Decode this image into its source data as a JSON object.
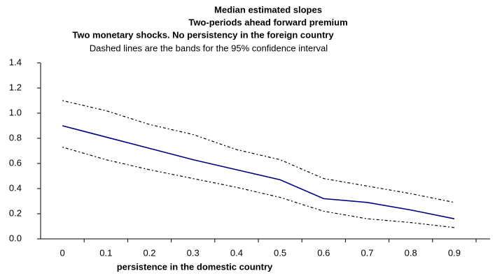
{
  "chart_data": {
    "type": "line",
    "title": "Median estimated slopes",
    "subtitle_lines": [
      "Two-periods ahead forward premium",
      "Two monetary shocks. No persistency in the foreign country"
    ],
    "note": "Dashed lines are the bands for the 95% confidence interval",
    "x_label": "persistence in the domestic country",
    "categories": [
      "0",
      "0.1",
      "0.2",
      "0.3",
      "0.4",
      "0.5",
      "0.6",
      "0.7",
      "0.8",
      "0.9"
    ],
    "series": [
      {
        "color": "#000080",
        "dashed": false,
        "values": [
          0.9,
          0.81,
          0.72,
          0.63,
          0.55,
          0.47,
          0.32,
          0.29,
          0.23,
          0.16
        ]
      },
      {
        "color": "#000000",
        "dashed": true,
        "values": [
          1.1,
          1.02,
          0.91,
          0.83,
          0.71,
          0.63,
          0.48,
          0.42,
          0.36,
          0.29
        ]
      },
      {
        "color": "#000000",
        "dashed": true,
        "values": [
          0.73,
          0.63,
          0.55,
          0.48,
          0.41,
          0.33,
          0.22,
          0.16,
          0.13,
          0.09
        ]
      }
    ],
    "ylim": [
      0,
      1.4
    ],
    "yticks": [
      {
        "value": 0,
        "label": "0.0"
      },
      0.2,
      0.4,
      0.6,
      0.8,
      {
        "value": 1,
        "label": "1.0"
      },
      1.2,
      1.4
    ],
    "grid": false
  }
}
